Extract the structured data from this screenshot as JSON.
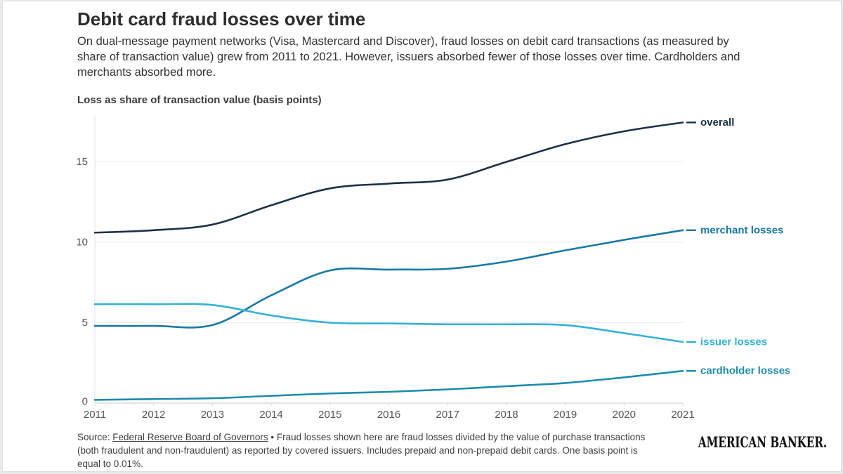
{
  "page": {
    "title": "Debit card fraud losses over time",
    "subtitle": "On dual-message payment networks (Visa, Mastercard and Discover), fraud losses on debit card transactions (as measured by share of transaction value) grew from 2011 to 2021. However, issuers absorbed fewer of those losses over time. Cardholders and merchants absorbed more.",
    "axis_caption": "Loss as share of transaction value (basis points)",
    "source": {
      "prefix": "Source: ",
      "link": "Federal Reserve Board of Governors",
      "separator": " • ",
      "text": "Fraud losses shown here are fraud losses divided by the value of purchase transactions (both fraudulent and non-fraudulent) as reported by covered issuers. Includes prepaid and non-prepaid debit cards. One basis point is equal to 0.01%."
    },
    "logo_text": "AMERICAN BANKER."
  },
  "colors": {
    "overall": "#1c3147",
    "merchant": "#1a78a2",
    "issuer": "#35b1d3",
    "cardholder": "#1c8cad",
    "grid": "#ececec",
    "axis": "#c9c9c9",
    "axis_vertical": "#e4e4e4",
    "tick_text": "#555555"
  },
  "chart_data": {
    "type": "line",
    "title": "Debit card fraud losses over time",
    "ylabel": "Loss as share of transaction value (basis points)",
    "xlabel": "",
    "x": [
      2011,
      2012,
      2013,
      2014,
      2015,
      2016,
      2017,
      2018,
      2019,
      2020,
      2021
    ],
    "yticks": [
      0,
      5,
      10,
      15
    ],
    "ylim": [
      0,
      18.3
    ],
    "grid": true,
    "legend_position": "end-of-line labels",
    "series": [
      {
        "name": "overall",
        "label": "overall",
        "color": "#1c3147",
        "values": [
          10.6,
          10.75,
          11.1,
          12.3,
          13.35,
          13.65,
          13.9,
          15.0,
          16.1,
          16.9,
          17.45
        ]
      },
      {
        "name": "merchant-losses",
        "label": "merchant losses",
        "color": "#1a78a2",
        "values": [
          4.8,
          4.8,
          4.85,
          6.7,
          8.25,
          8.3,
          8.35,
          8.8,
          9.5,
          10.15,
          10.75
        ]
      },
      {
        "name": "issuer-losses",
        "label": "issuer losses",
        "color": "#35b1d3",
        "values": [
          6.15,
          6.15,
          6.1,
          5.45,
          5.0,
          4.95,
          4.9,
          4.9,
          4.85,
          4.35,
          3.8
        ]
      },
      {
        "name": "cardholder-losses",
        "label": "cardholder losses",
        "color": "#1c8cad",
        "values": [
          0.2,
          0.25,
          0.3,
          0.45,
          0.6,
          0.7,
          0.85,
          1.05,
          1.25,
          1.6,
          2.0
        ]
      }
    ]
  }
}
